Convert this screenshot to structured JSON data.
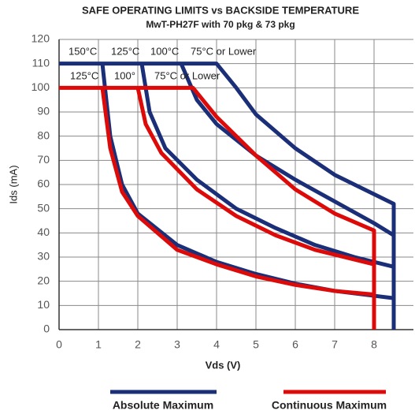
{
  "chart_data": {
    "type": "line",
    "title": "SAFE OPERATING LIMITS vs BACKSIDE TEMPERATURE",
    "subtitle": "MwT-PH27F with 70 pkg & 73 pkg",
    "x_label": "Vds (V)",
    "y_label": "Ids (mA)",
    "xlim": [
      0,
      9
    ],
    "xticks": [
      0,
      1,
      2,
      3,
      4,
      5,
      6,
      7,
      8
    ],
    "ylim": [
      0,
      120
    ],
    "yticks": [
      0,
      10,
      20,
      30,
      40,
      50,
      60,
      70,
      80,
      90,
      100,
      110,
      120
    ],
    "grid": true,
    "annotations": [
      "150°C",
      "125°C",
      "100°C",
      "75°C or Lower",
      "125°C",
      "100°",
      "75°C or Lower"
    ],
    "series": [
      {
        "name": "Absolute Maximum",
        "color": "#1b2f78",
        "curves": [
          {
            "x": [
              0,
              4,
              4.5,
              5,
              6,
              7,
              8,
              8.5,
              8.5
            ],
            "values": [
              110,
              110,
              100,
              89,
              75,
              64,
              56,
              52,
              0
            ]
          },
          {
            "x": [
              3.1,
              3.5,
              4,
              5,
              6,
              7,
              8,
              8.5
            ],
            "values": [
              110,
              95,
              85,
              72,
              62,
              53,
              44,
              39
            ]
          },
          {
            "x": [
              2.1,
              2.3,
              2.7,
              3.5,
              4.5,
              5.5,
              6.5,
              7.5,
              8.5
            ],
            "values": [
              110,
              90,
              75,
              62,
              50,
              42,
              35,
              30,
              26
            ]
          },
          {
            "x": [
              1.1,
              1.3,
              1.6,
              2,
              3,
              4,
              5,
              6,
              7,
              8,
              8.5
            ],
            "values": [
              110,
              80,
              60,
              48,
              35,
              28,
              23,
              19,
              16,
              14,
              13
            ]
          }
        ]
      },
      {
        "name": "Continuous Maximum",
        "color": "#dd0a0a",
        "curves": [
          {
            "x": [
              0,
              3.4,
              3.6,
              4,
              5,
              6,
              7,
              8,
              8
            ],
            "values": [
              100,
              100,
              96,
              88,
              72,
              58,
              48,
              41,
              0
            ]
          },
          {
            "x": [
              2.0,
              2.2,
              2.6,
              3.5,
              4.5,
              5.5,
              6.5,
              7.5,
              8
            ],
            "values": [
              100,
              85,
              73,
              58,
              47,
              39,
              33,
              29,
              27
            ]
          },
          {
            "x": [
              1.1,
              1.3,
              1.6,
              2,
              3,
              4,
              5,
              6,
              7,
              8
            ],
            "values": [
              100,
              75,
              57,
              47,
              33,
              27,
              22,
              18.5,
              16,
              14.5
            ]
          }
        ]
      }
    ]
  }
}
